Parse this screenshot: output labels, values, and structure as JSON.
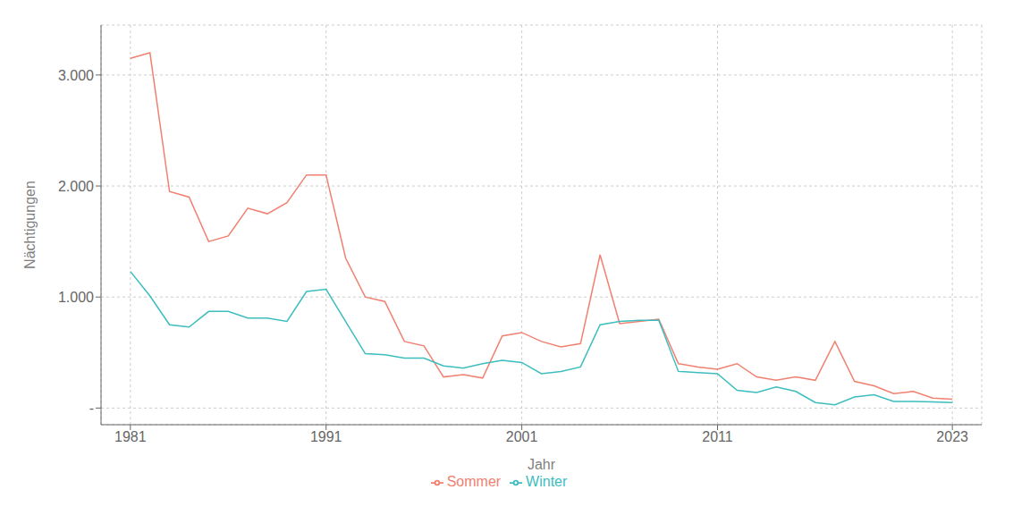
{
  "chart_data": {
    "type": "line",
    "xlabel": "Jahr",
    "ylabel": "Nächtigungen",
    "x": [
      1981,
      1982,
      1983,
      1984,
      1985,
      1986,
      1987,
      1988,
      1989,
      1990,
      1991,
      1992,
      1993,
      1994,
      1995,
      1996,
      1997,
      1998,
      1999,
      2000,
      2001,
      2002,
      2003,
      2004,
      2005,
      2006,
      2007,
      2008,
      2009,
      2010,
      2011,
      2012,
      2013,
      2014,
      2015,
      2016,
      2017,
      2018,
      2019,
      2020,
      2021,
      2022,
      2023
    ],
    "series": [
      {
        "name": "Sommer",
        "color": "#F08070",
        "values": [
          3150,
          3200,
          1950,
          1900,
          1500,
          1550,
          1800,
          1750,
          1850,
          2100,
          2100,
          1350,
          1000,
          960,
          600,
          560,
          280,
          300,
          270,
          650,
          680,
          600,
          550,
          580,
          1380,
          760,
          780,
          800,
          400,
          370,
          350,
          400,
          280,
          250,
          280,
          250,
          600,
          240,
          200,
          130,
          150,
          90,
          80
        ]
      },
      {
        "name": "Winter",
        "color": "#3DBDBD",
        "values": [
          1230,
          1010,
          750,
          730,
          870,
          870,
          810,
          810,
          780,
          1050,
          1070,
          780,
          490,
          480,
          450,
          450,
          380,
          360,
          400,
          430,
          410,
          310,
          330,
          370,
          750,
          780,
          790,
          790,
          330,
          320,
          310,
          160,
          140,
          190,
          150,
          50,
          30,
          100,
          120,
          60,
          60,
          55,
          50
        ]
      }
    ],
    "xlim": [
      1979.5,
      2024.5
    ],
    "ylim": [
      -150,
      3450
    ],
    "xticks": [
      1981,
      1991,
      2001,
      2011,
      2023
    ],
    "yticks": [
      {
        "value": 0,
        "label": "-"
      },
      {
        "value": 1000,
        "label": "1.000"
      },
      {
        "value": 2000,
        "label": "2.000"
      },
      {
        "value": 3000,
        "label": "3.000"
      }
    ],
    "grid": true,
    "legend": "bottom"
  }
}
